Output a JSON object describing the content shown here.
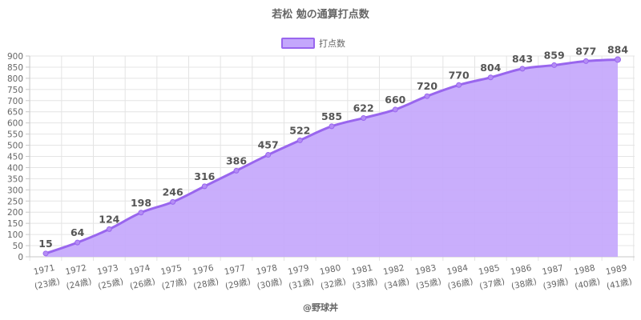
{
  "chart_data": {
    "type": "area",
    "title": "若松 勉の通算打点数",
    "legend": {
      "position": "top",
      "label": "打点数"
    },
    "categories": [
      "1971",
      "1972",
      "1973",
      "1974",
      "1975",
      "1976",
      "1977",
      "1978",
      "1979",
      "1980",
      "1981",
      "1982",
      "1983",
      "1984",
      "1985",
      "1986",
      "1987",
      "1988",
      "1989"
    ],
    "ages": [
      "(23歳)",
      "(24歳)",
      "(25歳)",
      "(26歳)",
      "(27歳)",
      "(28歳)",
      "(29歳)",
      "(30歳)",
      "(31歳)",
      "(32歳)",
      "(33歳)",
      "(34歳)",
      "(35歳)",
      "(36歳)",
      "(37歳)",
      "(38歳)",
      "(39歳)",
      "(40歳)",
      "(41歳)"
    ],
    "series": [
      {
        "name": "打点数",
        "values": [
          15,
          64,
          124,
          198,
          246,
          316,
          386,
          457,
          522,
          585,
          622,
          660,
          720,
          770,
          804,
          843,
          859,
          877,
          884
        ]
      }
    ],
    "ylim": [
      0,
      900
    ],
    "y_ticks": [
      0,
      50,
      100,
      150,
      200,
      250,
      300,
      350,
      400,
      450,
      500,
      550,
      600,
      650,
      700,
      750,
      800,
      850,
      900
    ],
    "grid": true,
    "colors": {
      "line": "#9966ee",
      "fill": "#c4a7fc",
      "point": "#b48cf5"
    }
  },
  "credit": "@野球丼"
}
